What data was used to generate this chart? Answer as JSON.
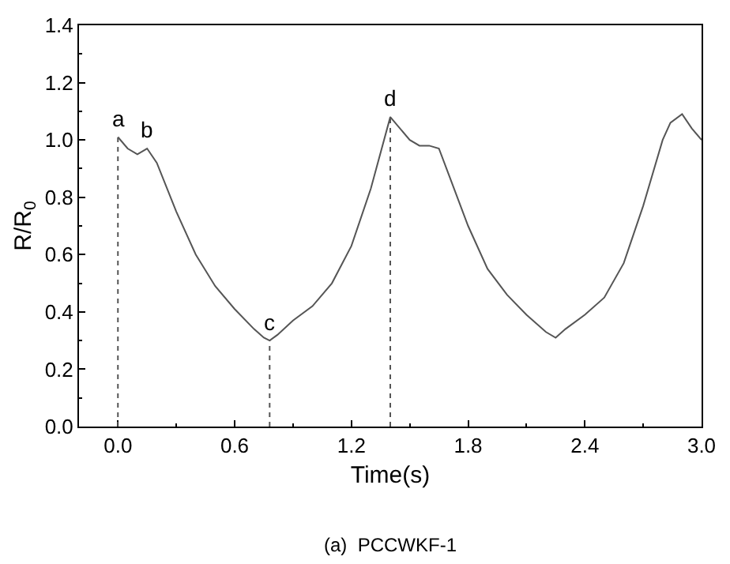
{
  "chart_data": {
    "type": "line",
    "xlabel": "Time(s)",
    "ylabel": "R/R$_{0}$",
    "x": [
      0,
      0.05,
      0.1,
      0.15,
      0.2,
      0.3,
      0.4,
      0.5,
      0.6,
      0.7,
      0.75,
      0.78,
      0.82,
      0.9,
      1.0,
      1.1,
      1.2,
      1.3,
      1.4,
      1.5,
      1.55,
      1.6,
      1.65,
      1.7,
      1.8,
      1.9,
      2.0,
      2.1,
      2.2,
      2.25,
      2.3,
      2.4,
      2.5,
      2.6,
      2.7,
      2.8,
      2.84,
      2.9,
      2.95,
      3.0
    ],
    "series": [
      {
        "color": "#555555",
        "values": [
          1.01,
          0.97,
          0.95,
          0.97,
          0.92,
          0.75,
          0.6,
          0.49,
          0.41,
          0.34,
          0.31,
          0.3,
          0.32,
          0.37,
          0.42,
          0.5,
          0.63,
          0.83,
          1.08,
          1.0,
          0.98,
          0.98,
          0.97,
          0.88,
          0.7,
          0.55,
          0.46,
          0.39,
          0.33,
          0.31,
          0.34,
          0.39,
          0.45,
          0.57,
          0.77,
          1.0,
          1.06,
          1.09,
          1.04,
          1.0
        ]
      }
    ],
    "xlim": [
      -0.2,
      3.0
    ],
    "xticks": [
      {
        "value": 0,
        "label": "0.0"
      },
      0.6,
      1.2,
      1.8,
      2.4,
      {
        "value": 3,
        "label": "3.0"
      }
    ],
    "ylim": [
      0,
      1.4
    ],
    "yticks": [
      {
        "value": 0,
        "label": "0.0"
      },
      0.2,
      0.4,
      0.6,
      0.8,
      {
        "value": 1,
        "label": "1.0"
      },
      1.2,
      1.4
    ],
    "marker": "none",
    "line_style": "solid",
    "ref_lines": [
      {
        "axis": "x",
        "value": 0,
        "line_style": "dotted",
        "color": "#555555"
      },
      {
        "axis": "x",
        "value": 0.78,
        "line_style": "dotted",
        "color": "#555555"
      },
      {
        "axis": "x",
        "value": 1.4,
        "line_style": "dotted",
        "color": "#555555"
      }
    ],
    "annotations": [
      {
        "text": "a",
        "x": 0,
        "y": 1.01
      },
      {
        "text": "b",
        "x": 0.15,
        "y": 0.97
      },
      {
        "text": "c",
        "x": 0.78,
        "y": 0.3
      },
      {
        "text": "d",
        "x": 1.4,
        "y": 1.08
      },
      "(a)  PCCWKF-1"
    ]
  }
}
